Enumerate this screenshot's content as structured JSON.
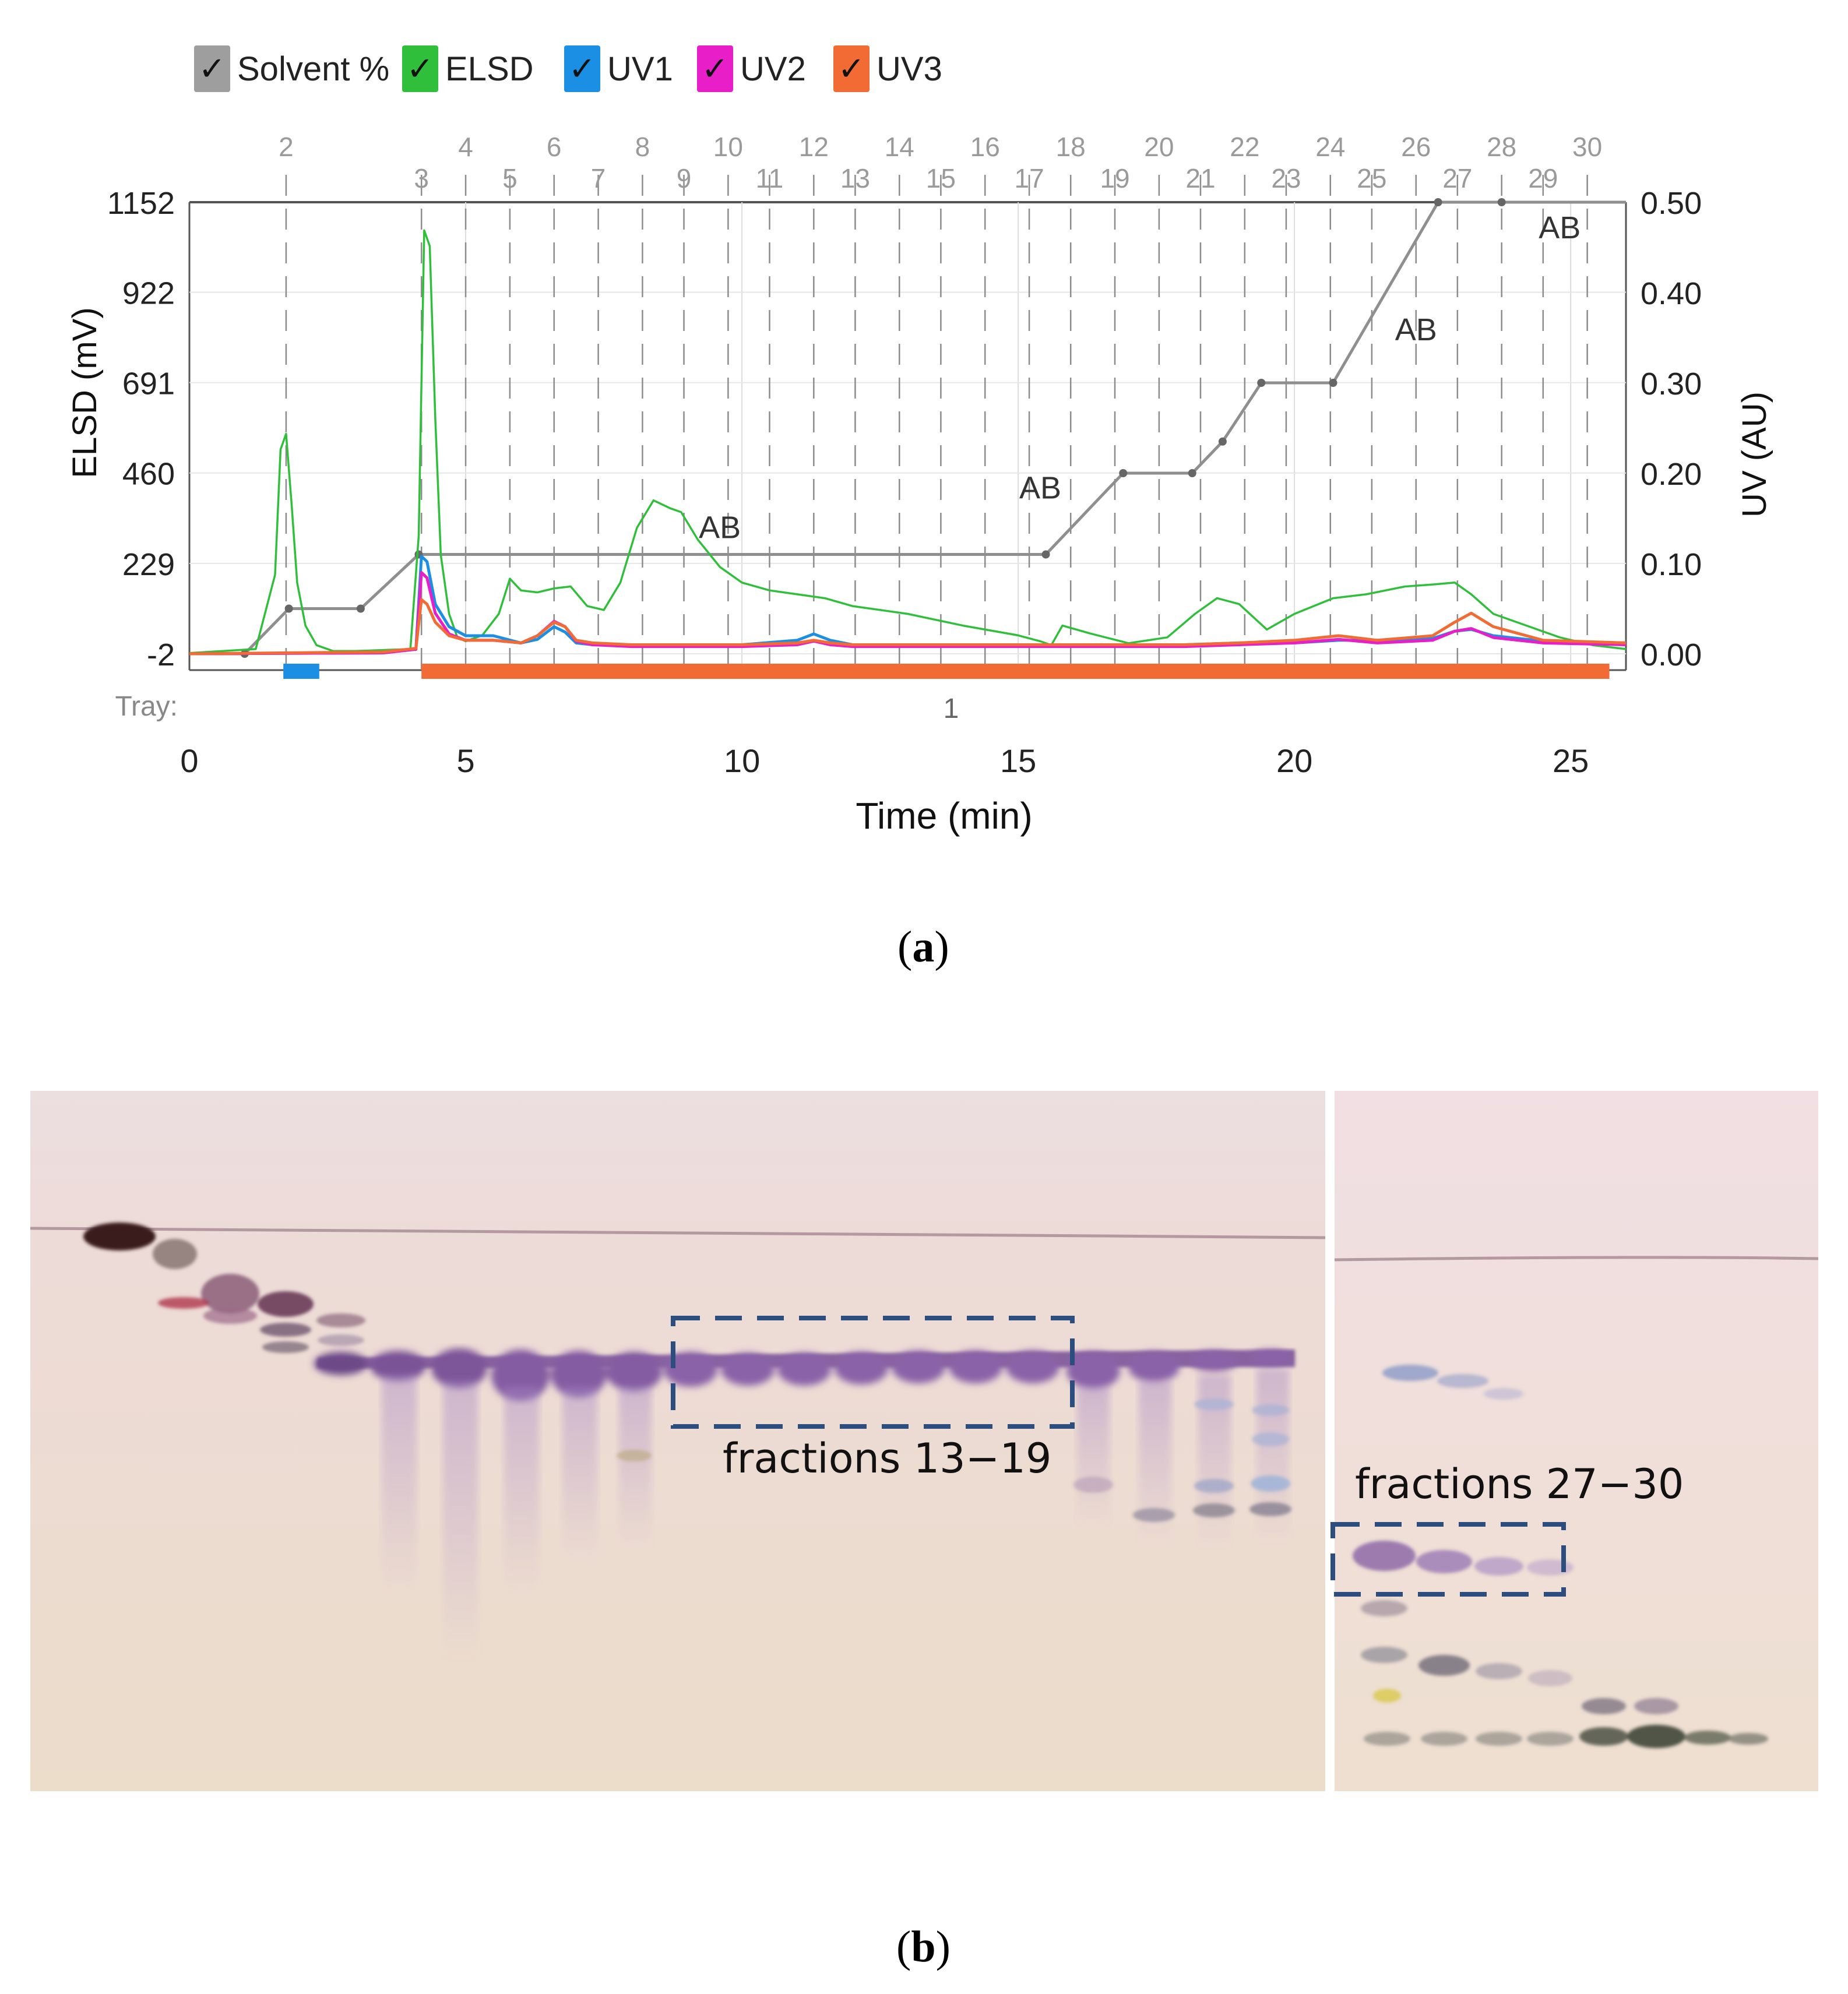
{
  "figure": {
    "panel_a_label": "(a)",
    "panel_b_label": "(b)",
    "panel_a_letter": "a",
    "panel_b_letter": "b"
  },
  "legend": [
    {
      "label": "Solvent %",
      "color": "#9e9e9e",
      "check": "✓"
    },
    {
      "label": "ELSD",
      "color": "#2fbf3a",
      "check": "✓"
    },
    {
      "label": "UV1",
      "color": "#1a8fe3",
      "check": "✓"
    },
    {
      "label": "UV2",
      "color": "#e81ec8",
      "check": "✓"
    },
    {
      "label": "UV3",
      "color": "#f26b35",
      "check": "✓"
    }
  ],
  "chart_data": {
    "type": "line",
    "title": "",
    "xlabel": "Time (min)",
    "ylabel_left": "ELSD (mV)",
    "ylabel_right": "UV (AU)",
    "xlim": [
      0,
      26
    ],
    "ylim_left": [
      -2,
      1152
    ],
    "ylim_right": [
      0,
      0.5
    ],
    "x_ticks": [
      "0",
      "5",
      "10",
      "15",
      "20",
      "25"
    ],
    "x_tick_values": [
      0,
      5,
      10,
      15,
      20,
      25
    ],
    "y_left_ticks": [
      "1152",
      "922",
      "691",
      "460",
      "229",
      "-2"
    ],
    "y_left_tick_values": [
      1152,
      922,
      691,
      460,
      229,
      -2
    ],
    "y_right_ticks": [
      "0.50",
      "0.40",
      "0.30",
      "0.20",
      "0.10",
      "0.00"
    ],
    "y_right_tick_values": [
      0.5,
      0.4,
      0.3,
      0.2,
      0.1,
      0.0
    ],
    "tray_label": "Tray:",
    "tray_number": "1",
    "tray_bars": [
      {
        "start": 1.7,
        "end": 2.35,
        "color": "#1a8fe3"
      },
      {
        "start": 4.2,
        "end": 25.7,
        "color": "#f26b35"
      }
    ],
    "fractions": [
      {
        "label": "2",
        "time": 1.75,
        "row": "top"
      },
      {
        "label": "3",
        "time": 4.2,
        "row": "bottom"
      },
      {
        "label": "4",
        "time": 5.0,
        "row": "top"
      },
      {
        "label": "5",
        "time": 5.8,
        "row": "bottom"
      },
      {
        "label": "6",
        "time": 6.6,
        "row": "top"
      },
      {
        "label": "7",
        "time": 7.4,
        "row": "bottom"
      },
      {
        "label": "8",
        "time": 8.2,
        "row": "top"
      },
      {
        "label": "9",
        "time": 8.95,
        "row": "bottom"
      },
      {
        "label": "10",
        "time": 9.75,
        "row": "top"
      },
      {
        "label": "11",
        "time": 10.5,
        "row": "bottom"
      },
      {
        "label": "12",
        "time": 11.3,
        "row": "top"
      },
      {
        "label": "13",
        "time": 12.05,
        "row": "bottom"
      },
      {
        "label": "14",
        "time": 12.85,
        "row": "top"
      },
      {
        "label": "15",
        "time": 13.6,
        "row": "bottom"
      },
      {
        "label": "16",
        "time": 14.4,
        "row": "top"
      },
      {
        "label": "17",
        "time": 15.2,
        "row": "bottom"
      },
      {
        "label": "18",
        "time": 15.95,
        "row": "top"
      },
      {
        "label": "19",
        "time": 16.75,
        "row": "bottom"
      },
      {
        "label": "20",
        "time": 17.55,
        "row": "top"
      },
      {
        "label": "21",
        "time": 18.3,
        "row": "bottom"
      },
      {
        "label": "22",
        "time": 19.1,
        "row": "top"
      },
      {
        "label": "23",
        "time": 19.85,
        "row": "bottom"
      },
      {
        "label": "24",
        "time": 20.65,
        "row": "top"
      },
      {
        "label": "25",
        "time": 21.4,
        "row": "bottom"
      },
      {
        "label": "26",
        "time": 22.2,
        "row": "top"
      },
      {
        "label": "27",
        "time": 22.95,
        "row": "bottom"
      },
      {
        "label": "28",
        "time": 23.75,
        "row": "top"
      },
      {
        "label": "29",
        "time": 24.5,
        "row": "bottom"
      },
      {
        "label": "30",
        "time": 25.3,
        "row": "top"
      }
    ],
    "annotations": [
      {
        "text": "AB",
        "x": 9.6,
        "y_right": 0.141
      },
      {
        "text": "AB",
        "x": 15.4,
        "y_right": 0.185
      },
      {
        "text": "AB",
        "x": 22.2,
        "y_right": 0.36
      },
      {
        "text": "AB",
        "x": 24.8,
        "y_right": 0.473
      }
    ],
    "series": [
      {
        "name": "Solvent %",
        "axis": "right",
        "color": "#8f8f8f",
        "markers": true,
        "x": [
          0,
          1.0,
          1.8,
          3.1,
          4.15,
          15.5,
          16.9,
          18.15,
          18.7,
          19.4,
          20.7,
          22.6,
          23.75,
          26.0
        ],
        "y": [
          0.0,
          0.0,
          0.05,
          0.05,
          0.11,
          0.11,
          0.2,
          0.2,
          0.235,
          0.3,
          0.3,
          0.5,
          0.5,
          0.5
        ]
      },
      {
        "name": "ELSD",
        "axis": "left",
        "color": "#2fbf3a",
        "x": [
          0,
          1.2,
          1.55,
          1.65,
          1.75,
          1.85,
          1.95,
          2.1,
          2.3,
          2.6,
          3.0,
          4.0,
          4.15,
          4.25,
          4.35,
          4.45,
          4.55,
          4.7,
          4.85,
          5.0,
          5.3,
          5.6,
          5.8,
          6.0,
          6.3,
          6.6,
          6.9,
          7.2,
          7.5,
          7.8,
          8.1,
          8.4,
          8.7,
          8.9,
          9.2,
          9.6,
          10.0,
          10.5,
          11.0,
          11.5,
          12.0,
          13.0,
          14.0,
          15.0,
          15.4,
          15.6,
          15.8,
          16.3,
          17.0,
          17.7,
          18.2,
          18.6,
          19.0,
          19.5,
          20.0,
          20.7,
          21.3,
          22.0,
          22.5,
          22.9,
          23.2,
          23.6,
          24.2,
          24.8,
          25.4,
          26.0
        ],
        "y": [
          0,
          10,
          200,
          520,
          560,
          380,
          180,
          70,
          20,
          5,
          5,
          10,
          300,
          1080,
          1040,
          600,
          250,
          100,
          40,
          30,
          45,
          100,
          190,
          160,
          155,
          165,
          170,
          120,
          110,
          180,
          320,
          390,
          370,
          360,
          290,
          220,
          180,
          160,
          150,
          140,
          120,
          100,
          70,
          45,
          30,
          20,
          70,
          50,
          25,
          40,
          100,
          140,
          125,
          60,
          100,
          140,
          150,
          170,
          175,
          180,
          150,
          100,
          70,
          40,
          20,
          10
        ]
      },
      {
        "name": "UV1",
        "axis": "right",
        "color": "#1a8fe3",
        "x": [
          0,
          3.5,
          4.1,
          4.2,
          4.3,
          4.45,
          4.7,
          5.0,
          5.5,
          6.0,
          6.3,
          6.6,
          6.8,
          7.0,
          7.3,
          8.0,
          10.0,
          11.0,
          11.3,
          11.6,
          12.0,
          15.0,
          18.0,
          19.0,
          20.0,
          20.8,
          21.5,
          22.5,
          22.9,
          23.2,
          23.6,
          24.5,
          26.0
        ],
        "y": [
          0.0,
          0.001,
          0.005,
          0.108,
          0.102,
          0.055,
          0.03,
          0.02,
          0.02,
          0.012,
          0.016,
          0.03,
          0.024,
          0.012,
          0.01,
          0.01,
          0.01,
          0.015,
          0.022,
          0.015,
          0.01,
          0.01,
          0.01,
          0.012,
          0.012,
          0.015,
          0.015,
          0.017,
          0.025,
          0.027,
          0.02,
          0.014,
          0.012
        ]
      },
      {
        "name": "UV2",
        "axis": "right",
        "color": "#e81ec8",
        "x": [
          0,
          3.5,
          4.1,
          4.2,
          4.3,
          4.45,
          4.7,
          5.0,
          5.5,
          6.0,
          6.3,
          6.6,
          6.8,
          7.0,
          7.3,
          8.0,
          10.0,
          11.0,
          11.3,
          11.6,
          12.0,
          15.0,
          18.0,
          19.0,
          20.0,
          20.8,
          21.5,
          22.5,
          22.9,
          23.2,
          23.6,
          24.5,
          26.0
        ],
        "y": [
          0.0,
          0.001,
          0.005,
          0.09,
          0.084,
          0.045,
          0.022,
          0.015,
          0.015,
          0.012,
          0.02,
          0.036,
          0.03,
          0.014,
          0.01,
          0.008,
          0.008,
          0.01,
          0.014,
          0.01,
          0.008,
          0.008,
          0.008,
          0.01,
          0.012,
          0.016,
          0.012,
          0.015,
          0.025,
          0.028,
          0.018,
          0.012,
          0.01
        ]
      },
      {
        "name": "UV3",
        "axis": "right",
        "color": "#f26b35",
        "x": [
          0,
          3.5,
          4.1,
          4.2,
          4.3,
          4.45,
          4.7,
          5.0,
          5.5,
          6.0,
          6.3,
          6.6,
          6.8,
          7.0,
          7.3,
          8.0,
          10.0,
          11.0,
          11.3,
          11.6,
          12.0,
          15.0,
          18.0,
          19.0,
          20.0,
          20.8,
          21.5,
          22.5,
          22.9,
          23.2,
          23.6,
          24.5,
          26.0
        ],
        "y": [
          0.0,
          0.002,
          0.006,
          0.06,
          0.055,
          0.035,
          0.02,
          0.015,
          0.015,
          0.012,
          0.02,
          0.035,
          0.03,
          0.015,
          0.012,
          0.01,
          0.01,
          0.012,
          0.015,
          0.012,
          0.01,
          0.01,
          0.01,
          0.012,
          0.015,
          0.02,
          0.015,
          0.02,
          0.035,
          0.045,
          0.03,
          0.015,
          0.012
        ]
      }
    ]
  },
  "tlc": {
    "label_left": "fractions 13−19",
    "label_right": "fractions 27−30"
  }
}
